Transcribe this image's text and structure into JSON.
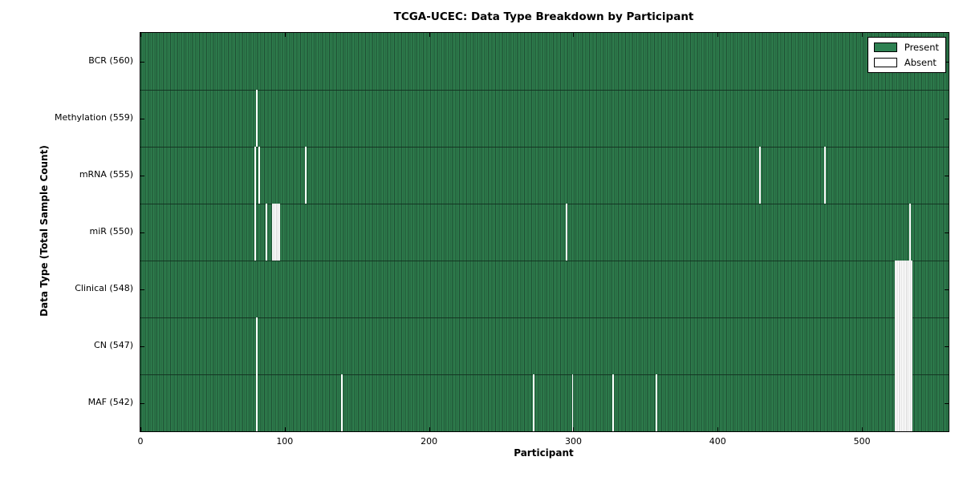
{
  "chart_data": {
    "type": "heatmap",
    "title": "TCGA-UCEC: Data Type Breakdown by Participant",
    "xlabel": "Participant",
    "ylabel": "Data Type (Total Sample Count)",
    "xlim": [
      0,
      560
    ],
    "x_ticks": [
      0,
      100,
      200,
      300,
      400,
      500
    ],
    "n_participants": 560,
    "grid": false,
    "colors": {
      "present": "#2e8152",
      "present_edge": "#1e4d32",
      "absent": "#ffffff",
      "absent_edge": "#c4c4c4",
      "border": "#000000"
    },
    "legend": {
      "position": "upper right",
      "entries": [
        {
          "label": "Present",
          "color": "#2e8152"
        },
        {
          "label": "Absent",
          "color": "#ffffff"
        }
      ]
    },
    "rows": [
      {
        "label": "BCR",
        "total": 560,
        "tick_label": "BCR (560)",
        "absent_participants": []
      },
      {
        "label": "Methylation",
        "total": 559,
        "tick_label": "Methylation (559)",
        "absent_participants": [
          80
        ]
      },
      {
        "label": "mRNA",
        "total": 555,
        "tick_label": "mRNA (555)",
        "absent_participants": [
          79,
          82,
          114,
          429,
          474
        ]
      },
      {
        "label": "miR",
        "total": 550,
        "tick_label": "miR (550)",
        "absent_participants": [
          79,
          87,
          91,
          92,
          93,
          94,
          95,
          96,
          295,
          533
        ]
      },
      {
        "label": "Clinical",
        "total": 548,
        "tick_label": "Clinical (548)",
        "absent_participants": [
          523,
          524,
          525,
          526,
          527,
          528,
          529,
          530,
          531,
          532,
          533,
          534
        ]
      },
      {
        "label": "CN",
        "total": 547,
        "tick_label": "CN (547)",
        "absent_participants": [
          80,
          523,
          524,
          525,
          526,
          527,
          528,
          529,
          530,
          531,
          532,
          533,
          534
        ]
      },
      {
        "label": "MAF",
        "total": 542,
        "tick_label": "MAF (542)",
        "absent_participants": [
          80,
          139,
          272,
          299,
          327,
          357,
          523,
          524,
          525,
          526,
          527,
          528,
          529,
          530,
          531,
          532,
          533,
          534
        ]
      }
    ]
  }
}
